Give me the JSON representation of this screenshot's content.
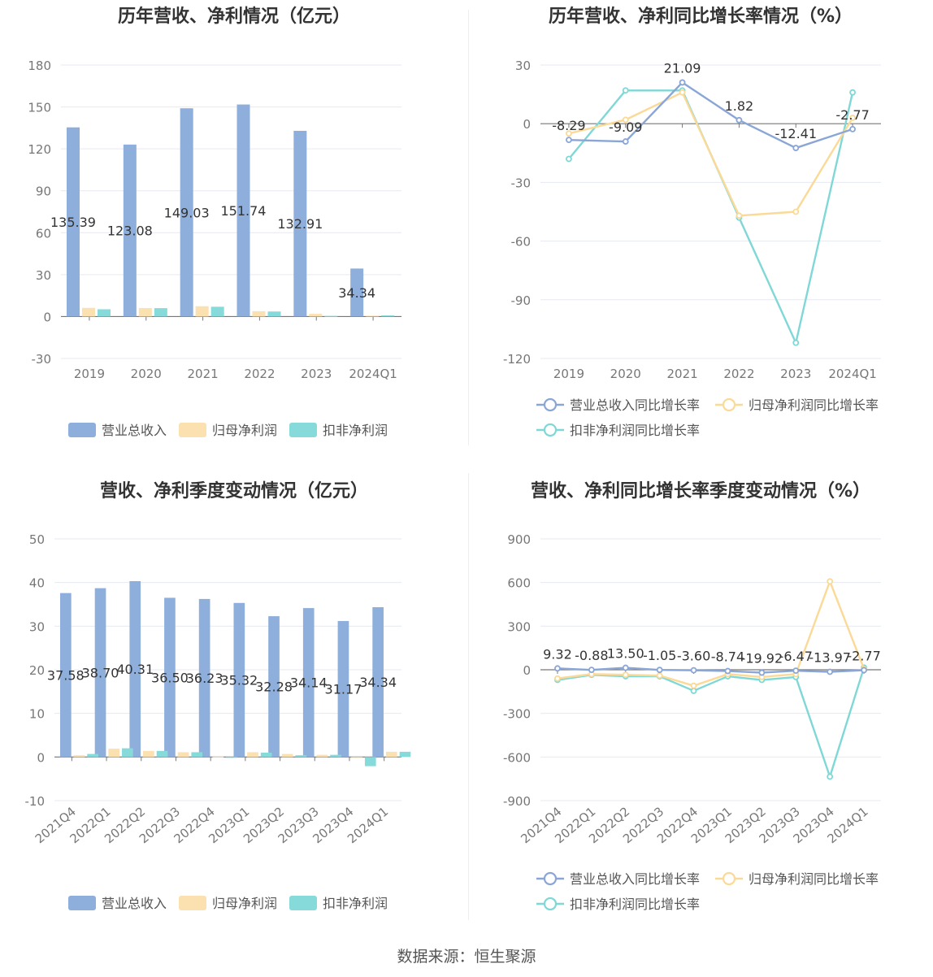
{
  "source": "数据来源：恒生聚源",
  "colors": {
    "revenue": "#8eaedb",
    "parent_profit": "#fbe0b0",
    "deducted_profit": "#86dada",
    "revenue_line": "#8aa6d6",
    "parent_line": "#fbd996",
    "deducted_line": "#7fd8d6",
    "grid": "#e6e9f0",
    "axis_text": "#777777"
  },
  "charts": [
    {
      "id": "annual-amounts",
      "title": "历年营收、净利情况（亿元）",
      "chart_data": {
        "type": "bar",
        "categories": [
          "2019",
          "2020",
          "2021",
          "2022",
          "2023",
          "2024Q1"
        ],
        "yticks": [
          "180",
          "150",
          "120",
          "90",
          "60",
          "30",
          "0",
          "-30"
        ],
        "ylim": [
          -30,
          180
        ],
        "series": [
          {
            "name": "营业总收入",
            "values": [
              135.39,
              123.08,
              149.03,
              151.74,
              132.91,
              34.34
            ],
            "labels": [
              "135.39",
              "123.08",
              "149.03",
              "151.74",
              "132.91",
              "34.34"
            ]
          },
          {
            "name": "归母净利润",
            "values": [
              6.2,
              6.1,
              7.4,
              3.8,
              1.9,
              0.6
            ]
          },
          {
            "name": "扣非净利润",
            "values": [
              5.2,
              6.0,
              7.0,
              3.6,
              0.4,
              0.8
            ]
          }
        ]
      }
    },
    {
      "id": "annual-growth",
      "title": "历年营收、净利同比增长率情况（%）",
      "chart_data": {
        "type": "line",
        "categories": [
          "2019",
          "2020",
          "2021",
          "2022",
          "2023",
          "2024Q1"
        ],
        "yticks": [
          "30",
          "0",
          "-30",
          "-60",
          "-90",
          "-120"
        ],
        "ylim": [
          -120,
          30
        ],
        "series": [
          {
            "name": "营业总收入同比增长率",
            "values": [
              -8.29,
              -9.09,
              21.09,
              1.82,
              -12.41,
              -2.77
            ],
            "labels": [
              "-8.29",
              "-9.09",
              "21.09",
              "1.82",
              "-12.41",
              "-2.77"
            ]
          },
          {
            "name": "归母净利润同比增长率",
            "values": [
              -5.0,
              2.0,
              16.0,
              -47.0,
              -45.0,
              3.0
            ]
          },
          {
            "name": "扣非净利润同比增长率",
            "values": [
              -18.0,
              17.0,
              17.0,
              -48.0,
              -112.0,
              16.0
            ]
          }
        ]
      }
    },
    {
      "id": "quarterly-amounts",
      "title": "营收、净利季度变动情况（亿元）",
      "chart_data": {
        "type": "bar",
        "categories": [
          "2021Q4",
          "2022Q1",
          "2022Q2",
          "2022Q3",
          "2022Q4",
          "2023Q1",
          "2023Q2",
          "2023Q3",
          "2023Q4",
          "2024Q1"
        ],
        "yticks": [
          "50",
          "40",
          "30",
          "20",
          "10",
          "0",
          "-10"
        ],
        "ylim": [
          -10,
          50
        ],
        "series": [
          {
            "name": "营业总收入",
            "values": [
              37.58,
              38.7,
              40.31,
              36.5,
              36.23,
              35.32,
              32.28,
              34.14,
              31.17,
              34.34
            ],
            "labels": [
              "37.58",
              "38.70",
              "40.31",
              "36.50",
              "36.23",
              "35.32",
              "32.28",
              "34.14",
              "31.17",
              "34.34"
            ]
          },
          {
            "name": "归母净利润",
            "values": [
              0.4,
              1.9,
              1.4,
              1.1,
              0.1,
              1.1,
              0.7,
              0.5,
              -0.2,
              1.2
            ]
          },
          {
            "name": "扣非净利润",
            "values": [
              0.7,
              2.0,
              1.4,
              1.1,
              -0.1,
              1.0,
              0.4,
              0.5,
              -2.1,
              1.2
            ]
          }
        ]
      }
    },
    {
      "id": "quarterly-growth",
      "title": "营收、净利同比增长率季度变动情况（%）",
      "chart_data": {
        "type": "line",
        "categories": [
          "2021Q4",
          "2022Q1",
          "2022Q2",
          "2022Q3",
          "2022Q4",
          "2023Q1",
          "2023Q2",
          "2023Q3",
          "2023Q4",
          "2024Q1"
        ],
        "yticks": [
          "900",
          "600",
          "300",
          "0",
          "-300",
          "-600",
          "-900"
        ],
        "ylim": [
          -900,
          900
        ],
        "series": [
          {
            "name": "营业总收入同比增长率",
            "values": [
              9.32,
              -0.88,
              13.5,
              -1.05,
              -3.6,
              -8.74,
              -19.92,
              -6.47,
              -13.97,
              -2.77
            ],
            "labels": [
              "9.32",
              "-0.88",
              "13.50",
              "-1.05",
              "-3.60",
              "-8.74",
              "-19.92",
              "-6.47",
              "-13.97",
              "-2.77"
            ]
          },
          {
            "name": "归母净利润同比增长率",
            "values": [
              -60,
              -30,
              -35,
              -40,
              -110,
              -30,
              -50,
              -30,
              608,
              5
            ]
          },
          {
            "name": "扣非净利润同比增长率",
            "values": [
              -70,
              -35,
              -45,
              -45,
              -145,
              -45,
              -70,
              -50,
              -735,
              15
            ]
          }
        ]
      }
    }
  ]
}
